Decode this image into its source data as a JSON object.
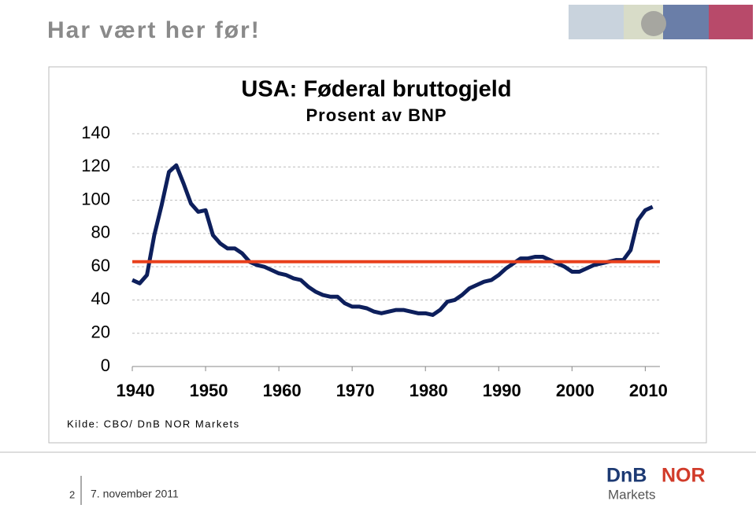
{
  "slide_title": "Har vært her før!",
  "chart_data": {
    "type": "line",
    "title": "USA: Føderal bruttogjeld",
    "subtitle": "Prosent av BNP",
    "x": [
      1940,
      1941,
      1942,
      1943,
      1944,
      1945,
      1946,
      1947,
      1948,
      1949,
      1950,
      1951,
      1952,
      1953,
      1954,
      1955,
      1956,
      1957,
      1958,
      1959,
      1960,
      1961,
      1962,
      1963,
      1964,
      1965,
      1966,
      1967,
      1968,
      1969,
      1970,
      1971,
      1972,
      1973,
      1974,
      1975,
      1976,
      1977,
      1978,
      1979,
      1980,
      1981,
      1982,
      1983,
      1984,
      1985,
      1986,
      1987,
      1988,
      1989,
      1990,
      1991,
      1992,
      1993,
      1994,
      1995,
      1996,
      1997,
      1998,
      1999,
      2000,
      2001,
      2002,
      2003,
      2004,
      2005,
      2006,
      2007,
      2008,
      2009,
      2010,
      2011
    ],
    "series": [
      {
        "color": "#0d1f5c",
        "values": [
          52,
          50,
          55,
          79,
          97,
          117,
          121,
          110,
          98,
          93,
          94,
          79,
          74,
          71,
          71,
          68,
          63,
          61,
          60,
          58,
          56,
          55,
          53,
          52,
          48,
          45,
          43,
          42,
          42,
          38,
          36,
          36,
          35,
          33,
          32,
          33,
          34,
          34,
          33,
          32,
          32,
          31,
          34,
          39,
          40,
          43,
          47,
          49,
          51,
          52,
          55,
          59,
          62,
          65,
          65,
          66,
          66,
          64,
          62,
          60,
          57,
          57,
          59,
          61,
          62,
          63,
          64,
          64,
          70,
          88,
          94,
          96
        ]
      }
    ],
    "reference_line": {
      "value": 63,
      "color": "#e8401c"
    },
    "xlim": [
      1940,
      2012
    ],
    "xticks": [
      1940,
      1950,
      1960,
      1970,
      1980,
      1990,
      2000,
      2010
    ],
    "ylim": [
      0,
      140
    ],
    "yticks": [
      0,
      20,
      40,
      60,
      80,
      100,
      120,
      140
    ],
    "grid": true
  },
  "source": "Kilde: CBO/ DnB NOR Markets",
  "footer": {
    "page": "2",
    "date": "7. november 2011"
  },
  "logo": {
    "first": "DnB",
    "second": "NOR",
    "sub": "Markets"
  }
}
